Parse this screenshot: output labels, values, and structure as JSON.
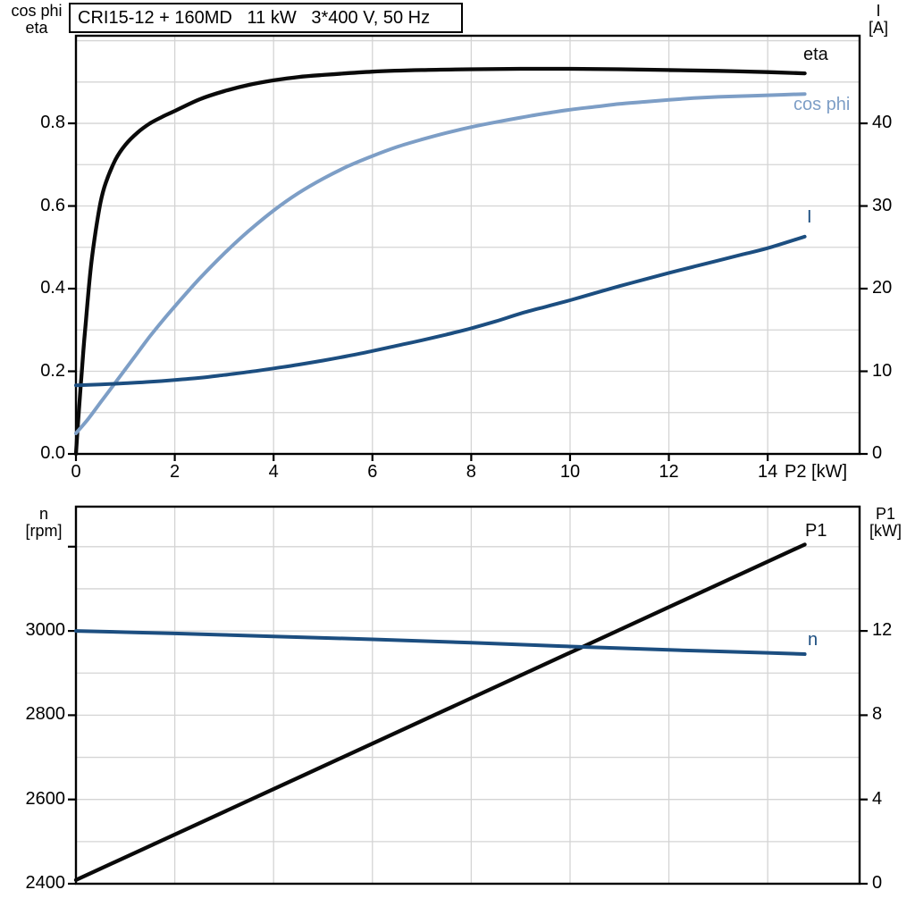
{
  "page": {
    "background": "#ffffff",
    "grid_color": "#d4d4d4",
    "frame_color": "#000000"
  },
  "chart_data": [
    {
      "type": "line",
      "title": "CRI15-12 + 160MD   11 kW   3*400 V, 50 Hz",
      "x_axis": {
        "label": "P2 [kW]",
        "range": [
          0,
          15.86
        ],
        "ticks": [
          {
            "v": 0,
            "label": "0"
          },
          {
            "v": 2,
            "label": "2"
          },
          {
            "v": 4,
            "label": "4"
          },
          {
            "v": 6,
            "label": "6"
          },
          {
            "v": 8,
            "label": "8"
          },
          {
            "v": 10,
            "label": "10"
          },
          {
            "v": 12,
            "label": "12"
          },
          {
            "v": 14,
            "label": "14"
          }
        ],
        "grid": [
          2,
          4,
          6,
          8,
          10,
          12,
          14
        ]
      },
      "left_axis": {
        "label_line1": "cos phi",
        "label_line2": "eta",
        "range": [
          0,
          1.012
        ],
        "ticks": [
          {
            "v": 0.0,
            "label": "0.0"
          },
          {
            "v": 0.2,
            "label": "0.2"
          },
          {
            "v": 0.4,
            "label": "0.4"
          },
          {
            "v": 0.6,
            "label": "0.6"
          },
          {
            "v": 0.8,
            "label": "0.8"
          }
        ],
        "grid": [
          0.1,
          0.2,
          0.3,
          0.4,
          0.5,
          0.6,
          0.7,
          0.8,
          0.9,
          1.0
        ]
      },
      "right_axis": {
        "label_line1": "I",
        "label_line2": "[A]",
        "range": [
          0,
          50.6
        ],
        "ticks": [
          {
            "v": 0,
            "label": "0"
          },
          {
            "v": 10,
            "label": "10"
          },
          {
            "v": 20,
            "label": "20"
          },
          {
            "v": 30,
            "label": "30"
          },
          {
            "v": 40,
            "label": "40"
          }
        ]
      },
      "series": [
        {
          "name": "eta",
          "axis": "left",
          "color": "#0a0a0a",
          "width": 4.3,
          "points": [
            [
              0,
              0
            ],
            [
              0.05,
              0.09
            ],
            [
              0.1,
              0.17
            ],
            [
              0.15,
              0.25
            ],
            [
              0.2,
              0.32
            ],
            [
              0.3,
              0.45
            ],
            [
              0.4,
              0.54
            ],
            [
              0.5,
              0.61
            ],
            [
              0.6,
              0.655
            ],
            [
              0.8,
              0.712
            ],
            [
              1.0,
              0.748
            ],
            [
              1.25,
              0.778
            ],
            [
              1.5,
              0.8
            ],
            [
              1.75,
              0.816
            ],
            [
              2.0,
              0.83
            ],
            [
              2.5,
              0.858
            ],
            [
              3.0,
              0.878
            ],
            [
              3.5,
              0.893
            ],
            [
              4.0,
              0.904
            ],
            [
              4.5,
              0.912
            ],
            [
              5.0,
              0.917
            ],
            [
              6.0,
              0.925
            ],
            [
              7.0,
              0.929
            ],
            [
              8.0,
              0.931
            ],
            [
              9.0,
              0.932
            ],
            [
              10.0,
              0.932
            ],
            [
              11.0,
              0.931
            ],
            [
              12.0,
              0.929
            ],
            [
              13.0,
              0.927
            ],
            [
              14.0,
              0.924
            ],
            [
              14.75,
              0.921
            ]
          ]
        },
        {
          "name": "cos phi",
          "axis": "left",
          "color": "#7d9ec6",
          "width": 4.0,
          "points": [
            [
              0,
              0.05
            ],
            [
              0.25,
              0.085
            ],
            [
              0.5,
              0.125
            ],
            [
              0.75,
              0.165
            ],
            [
              1.0,
              0.205
            ],
            [
              1.25,
              0.245
            ],
            [
              1.5,
              0.285
            ],
            [
              1.75,
              0.322
            ],
            [
              2.0,
              0.357
            ],
            [
              2.5,
              0.424
            ],
            [
              3.0,
              0.485
            ],
            [
              3.5,
              0.54
            ],
            [
              4.0,
              0.589
            ],
            [
              4.5,
              0.631
            ],
            [
              5.0,
              0.666
            ],
            [
              5.5,
              0.696
            ],
            [
              6.0,
              0.721
            ],
            [
              6.5,
              0.743
            ],
            [
              7.0,
              0.761
            ],
            [
              7.5,
              0.777
            ],
            [
              8.0,
              0.791
            ],
            [
              8.5,
              0.803
            ],
            [
              9.0,
              0.814
            ],
            [
              9.5,
              0.824
            ],
            [
              10.0,
              0.833
            ],
            [
              10.5,
              0.84
            ],
            [
              11.0,
              0.847
            ],
            [
              11.5,
              0.852
            ],
            [
              12.0,
              0.857
            ],
            [
              12.5,
              0.861
            ],
            [
              13.0,
              0.864
            ],
            [
              13.5,
              0.866
            ],
            [
              14.0,
              0.868
            ],
            [
              14.75,
              0.871
            ]
          ]
        },
        {
          "name": "I",
          "axis": "right",
          "color": "#1c4e80",
          "width": 4.0,
          "points": [
            [
              0,
              8.3
            ],
            [
              0.5,
              8.4
            ],
            [
              1,
              8.55
            ],
            [
              1.5,
              8.72
            ],
            [
              2,
              8.95
            ],
            [
              2.5,
              9.2
            ],
            [
              3,
              9.55
            ],
            [
              3.5,
              9.92
            ],
            [
              4,
              10.35
            ],
            [
              4.5,
              10.8
            ],
            [
              5,
              11.3
            ],
            [
              5.5,
              11.85
            ],
            [
              6,
              12.45
            ],
            [
              6.5,
              13.1
            ],
            [
              7,
              13.75
            ],
            [
              7.5,
              14.45
            ],
            [
              8,
              15.2
            ],
            [
              8.5,
              16.05
            ],
            [
              9,
              17.0
            ],
            [
              9.5,
              17.8
            ],
            [
              10,
              18.6
            ],
            [
              10.5,
              19.45
            ],
            [
              11,
              20.3
            ],
            [
              11.5,
              21.1
            ],
            [
              12,
              21.9
            ],
            [
              12.5,
              22.65
            ],
            [
              13,
              23.4
            ],
            [
              13.5,
              24.15
            ],
            [
              14,
              24.9
            ],
            [
              14.75,
              26.3
            ]
          ]
        }
      ]
    },
    {
      "type": "line",
      "x_axis": {
        "label": "",
        "range": [
          0,
          15.86
        ],
        "ticks": [],
        "grid": [
          2,
          4,
          6,
          8,
          10,
          12,
          14
        ]
      },
      "left_axis": {
        "label_line1": "n",
        "label_line2": "[rpm]",
        "range": [
          2400,
          3295
        ],
        "ticks": [
          {
            "v": 2400,
            "label": "2400"
          },
          {
            "v": 2600,
            "label": "2600"
          },
          {
            "v": 2800,
            "label": "2800"
          },
          {
            "v": 3000,
            "label": "3000"
          },
          {
            "v": 3200,
            "label": ""
          }
        ],
        "grid": [
          2500,
          2600,
          2700,
          2800,
          2900,
          3000,
          3100,
          3200
        ]
      },
      "right_axis": {
        "label_line1": "P1",
        "label_line2": "[kW]",
        "range": [
          0,
          17.9
        ],
        "ticks": [
          {
            "v": 0,
            "label": "0"
          },
          {
            "v": 4,
            "label": "4"
          },
          {
            "v": 8,
            "label": "8"
          },
          {
            "v": 12,
            "label": "12"
          }
        ]
      },
      "series": [
        {
          "name": "P1",
          "axis": "right",
          "color": "#0a0a0a",
          "width": 4.3,
          "points": [
            [
              0,
              0.18
            ],
            [
              7.5,
              8.27
            ],
            [
              14.75,
              16.1
            ]
          ]
        },
        {
          "name": "n",
          "axis": "left",
          "color": "#1c4e80",
          "width": 4.0,
          "points": [
            [
              0,
              3000
            ],
            [
              2,
              2994
            ],
            [
              4,
              2987
            ],
            [
              6,
              2980
            ],
            [
              8,
              2972
            ],
            [
              10,
              2963
            ],
            [
              12,
              2955
            ],
            [
              14,
              2948
            ],
            [
              14.75,
              2945
            ]
          ]
        }
      ]
    }
  ]
}
